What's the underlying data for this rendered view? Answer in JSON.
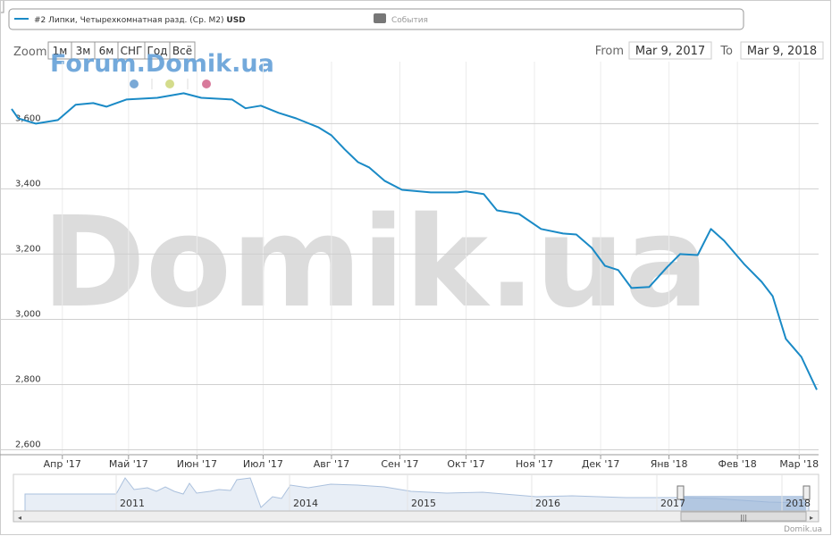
{
  "chart_data": {
    "type": "line",
    "series": [
      {
        "name": "#2 Липки, Четырехкомнатная разд. (Ср. М2)",
        "unit": "USD",
        "color": "#1a8ac6",
        "x": [
          "2017-03-09",
          "2017-03-12",
          "2017-03-20",
          "2017-03-30",
          "2017-04-07",
          "2017-04-15",
          "2017-04-21",
          "2017-04-30",
          "2017-05-14",
          "2017-05-26",
          "2017-06-03",
          "2017-06-17",
          "2017-06-23",
          "2017-06-30",
          "2017-07-08",
          "2017-07-16",
          "2017-07-26",
          "2017-08-01",
          "2017-08-07",
          "2017-08-13",
          "2017-08-18",
          "2017-08-25",
          "2017-09-02",
          "2017-09-15",
          "2017-09-27",
          "2017-10-01",
          "2017-10-09",
          "2017-10-15",
          "2017-10-25",
          "2017-11-04",
          "2017-11-14",
          "2017-11-20",
          "2017-11-27",
          "2017-12-03",
          "2017-12-09",
          "2017-12-15",
          "2017-12-23",
          "2017-12-31",
          "2018-01-06",
          "2018-01-14",
          "2018-01-20",
          "2018-01-26",
          "2018-02-04",
          "2018-02-12",
          "2018-02-17",
          "2018-02-23",
          "2018-03-02",
          "2018-03-09"
        ],
        "values": [
          3645,
          3616,
          3600,
          3611,
          3658,
          3663,
          3652,
          3674,
          3679,
          3693,
          3679,
          3674,
          3647,
          3655,
          3633,
          3616,
          3589,
          3564,
          3521,
          3482,
          3466,
          3425,
          3397,
          3389,
          3389,
          3392,
          3384,
          3334,
          3323,
          3277,
          3263,
          3260,
          3219,
          3164,
          3151,
          3096,
          3099,
          3159,
          3200,
          3197,
          3277,
          3241,
          3170,
          3115,
          3071,
          2940,
          2885,
          2784
        ]
      }
    ],
    "events_legend": "События",
    "xlim": [
      "2017-03-09",
      "2018-03-09"
    ],
    "xticks": [
      {
        "value": "2017-04-01",
        "label": "Апр '17"
      },
      {
        "value": "2017-05-01",
        "label": "Май '17"
      },
      {
        "value": "2017-06-01",
        "label": "Июн '17"
      },
      {
        "value": "2017-07-01",
        "label": "Июл '17"
      },
      {
        "value": "2017-08-01",
        "label": "Авг '17"
      },
      {
        "value": "2017-09-01",
        "label": "Сен '17"
      },
      {
        "value": "2017-10-01",
        "label": "Окт '17"
      },
      {
        "value": "2017-11-01",
        "label": "Ноя '17"
      },
      {
        "value": "2017-12-01",
        "label": "Дек '17"
      },
      {
        "value": "2018-01-01",
        "label": "Янв '18"
      },
      {
        "value": "2018-02-01",
        "label": "Фев '18"
      },
      {
        "value": "2018-03-01",
        "label": "Мар '18"
      }
    ],
    "ylim": [
      2585,
      3790
    ],
    "yticks": [
      {
        "value": 2600,
        "label": "2,600"
      },
      {
        "value": 2800,
        "label": "2,800"
      },
      {
        "value": 3000,
        "label": "3,000"
      },
      {
        "value": 3200,
        "label": "3,200"
      },
      {
        "value": 3400,
        "label": "3,400"
      },
      {
        "value": 3600,
        "label": "3,600"
      }
    ],
    "grid": true
  },
  "range_selector": {
    "zoom_label": "Zoom",
    "buttons": [
      "1м",
      "3м",
      "6м",
      "СНГ",
      "Год",
      "Всё"
    ],
    "from_label": "From",
    "from": "Mar 9, 2017",
    "to_label": "To",
    "to": "Mar 9, 2018"
  },
  "navigator": {
    "years": [
      "2011",
      "2014",
      "2015",
      "2016",
      "2017",
      "2018"
    ]
  },
  "watermarks": {
    "forum": "Forum.Domik.ua",
    "big": "Domik.ua"
  },
  "credits": "Domik.ua"
}
